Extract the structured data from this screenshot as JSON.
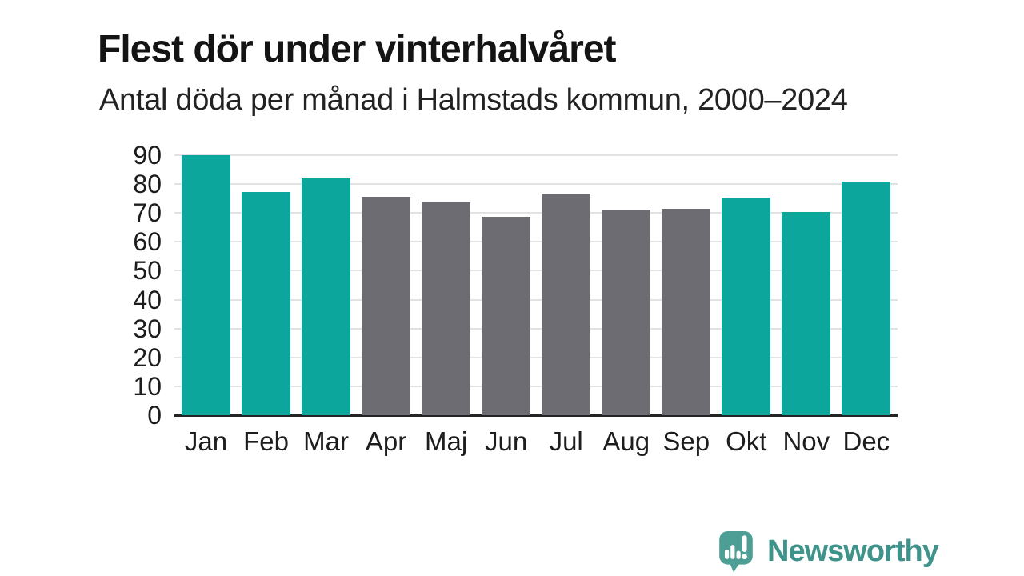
{
  "colors": {
    "background": "#ffffff",
    "title": "#141414",
    "subtitle": "#222222",
    "tick_labels": "#1d1d1d",
    "grid": "#e2e2e2",
    "axis": "#242424",
    "brand_icon": "#4d9e94",
    "brand_text": "#3e948b"
  },
  "chart_data": {
    "type": "bar",
    "title": "Flest dör under vinterhalvåret",
    "subtitle": "Antal döda per månad i Halmstads kommun, 2000–2024",
    "categories": [
      "Jan",
      "Feb",
      "Mar",
      "Apr",
      "Maj",
      "Jun",
      "Jul",
      "Aug",
      "Sep",
      "Okt",
      "Nov",
      "Dec"
    ],
    "values": [
      90,
      77.2,
      81.9,
      75.5,
      73.8,
      68.6,
      76.6,
      71.3,
      71.4,
      75.2,
      70.4,
      80.8
    ],
    "highlighted": [
      true,
      true,
      true,
      false,
      false,
      false,
      false,
      false,
      false,
      true,
      true,
      true
    ],
    "highlight_color": "#0da69c",
    "base_color": "#6e6c73",
    "xlabel": "",
    "ylabel": "",
    "ylim": [
      0,
      90
    ],
    "ytick_step": 10,
    "grid": "horizontal",
    "legend": "none"
  },
  "branding": {
    "wordmark": "Newsworthy",
    "icon": "newsworthy-speech-bubble-bar-chart-icon"
  }
}
